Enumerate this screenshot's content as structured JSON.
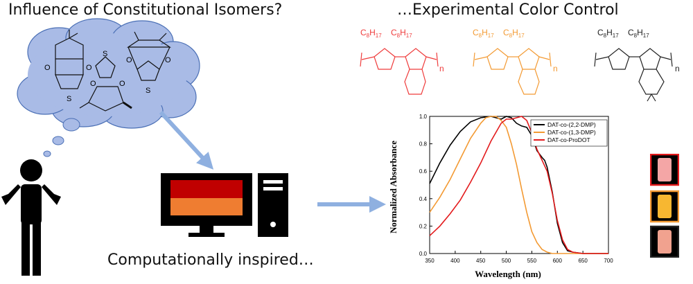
{
  "headings": {
    "left": "Influence of Constitutional Isomers?",
    "right": "…Experimental Color Control",
    "bottom": "Computationally inspired…"
  },
  "polymers": [
    {
      "c": "C",
      "sub1": "8",
      "h": "H",
      "sub2": "17",
      "color": "#ef3b3b",
      "n": "n"
    },
    {
      "c": "C",
      "sub1": "8",
      "h": "H",
      "sub2": "17",
      "color": "#f39a33",
      "n": "n"
    },
    {
      "c": "C",
      "sub1": "8",
      "h": "H",
      "sub2": "17",
      "color": "#222222",
      "n": "n"
    }
  ],
  "structure_atoms": {
    "S": "S",
    "O": "O"
  },
  "colors": {
    "cloud": "#a9bbe6",
    "arrow": "#8fb0e0",
    "monitor_top": "#c00000",
    "monitor_bottom": "#ef7d31"
  },
  "chart_data": {
    "type": "line",
    "xlabel": "Wavelength (nm)",
    "ylabel": "Normalized Absorbance",
    "xlim": [
      350,
      700
    ],
    "ylim": [
      0.0,
      1.0
    ],
    "xticks": [
      "350",
      "400",
      "450",
      "500",
      "550",
      "600",
      "650",
      "700"
    ],
    "yticks": [
      "0.0",
      "0.2",
      "0.4",
      "0.6",
      "0.8",
      "1.0"
    ],
    "legend_position": "top-right",
    "series": [
      {
        "name": "DAT-co-(2,2-DMP)",
        "color": "#000000",
        "x": [
          350,
          370,
          390,
          410,
          430,
          450,
          470,
          480,
          490,
          500,
          510,
          520,
          530,
          540,
          550,
          560,
          570,
          575,
          580,
          590,
          600,
          610,
          620,
          630,
          650,
          700
        ],
        "y": [
          0.51,
          0.66,
          0.79,
          0.89,
          0.96,
          0.99,
          1.0,
          0.99,
          0.98,
          1.0,
          0.99,
          0.95,
          0.93,
          0.92,
          0.86,
          0.75,
          0.7,
          0.68,
          0.63,
          0.45,
          0.22,
          0.08,
          0.02,
          0.01,
          0.0,
          0.0
        ]
      },
      {
        "name": "DAT-co-(1,3-DMP)",
        "color": "#f39a33",
        "x": [
          350,
          370,
          390,
          410,
          430,
          450,
          460,
          470,
          480,
          490,
          500,
          510,
          520,
          530,
          540,
          550,
          560,
          570,
          580,
          590,
          600,
          620,
          700
        ],
        "y": [
          0.3,
          0.41,
          0.54,
          0.69,
          0.84,
          0.95,
          0.99,
          1.0,
          1.0,
          0.97,
          0.92,
          0.8,
          0.65,
          0.47,
          0.3,
          0.16,
          0.08,
          0.03,
          0.01,
          0.0,
          0.0,
          0.0,
          0.0
        ]
      },
      {
        "name": "DAT-co-ProDOT",
        "color": "#e31a1c",
        "x": [
          350,
          370,
          390,
          410,
          430,
          450,
          470,
          490,
          500,
          510,
          520,
          530,
          540,
          550,
          560,
          570,
          580,
          590,
          600,
          610,
          620,
          630,
          650,
          700
        ],
        "y": [
          0.13,
          0.2,
          0.29,
          0.39,
          0.52,
          0.66,
          0.82,
          0.95,
          0.98,
          0.98,
          0.99,
          1.0,
          0.97,
          0.88,
          0.76,
          0.68,
          0.6,
          0.44,
          0.24,
          0.1,
          0.03,
          0.01,
          0.0,
          0.0
        ]
      }
    ]
  }
}
